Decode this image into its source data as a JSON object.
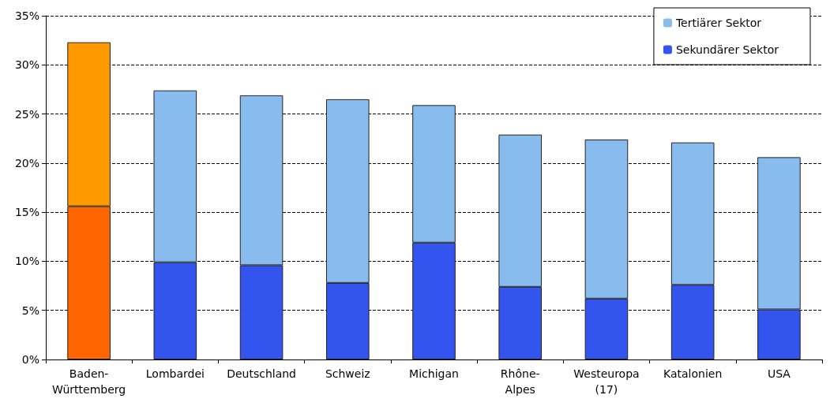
{
  "chart_data": {
    "type": "bar",
    "stacked": true,
    "categories": [
      "Baden-Württemberg",
      "Lombardei",
      "Deutschland",
      "Schweiz",
      "Michigan",
      "Rhône-Alpes",
      "Westeuropa (17)",
      "Katalonien",
      "USA"
    ],
    "series": [
      {
        "name": "Sekundärer Sektor",
        "color": "#3355ee",
        "colors": [
          "#ff6600",
          "#3355ee",
          "#3355ee",
          "#3355ee",
          "#3355ee",
          "#3355ee",
          "#3355ee",
          "#3355ee",
          "#3355ee"
        ],
        "values": [
          15.6,
          9.9,
          9.6,
          7.8,
          11.9,
          7.4,
          6.2,
          7.6,
          5.1
        ]
      },
      {
        "name": "Tertiärer Sektor",
        "color": "#88bbee",
        "colors": [
          "#ff9900",
          "#88bbee",
          "#88bbee",
          "#88bbee",
          "#88bbee",
          "#88bbee",
          "#88bbee",
          "#88bbee",
          "#88bbee"
        ],
        "values": [
          16.7,
          17.5,
          17.3,
          18.7,
          14.0,
          15.5,
          16.2,
          14.5,
          15.5
        ]
      }
    ],
    "ylim": [
      0,
      35
    ],
    "yticks": [
      {
        "value": 0,
        "label": "0%"
      },
      {
        "value": 5,
        "label": "5%"
      },
      {
        "value": 10,
        "label": "10%"
      },
      {
        "value": 15,
        "label": "15%"
      },
      {
        "value": 20,
        "label": "20%"
      },
      {
        "value": 25,
        "label": "25%"
      },
      {
        "value": 30,
        "label": "30%"
      },
      {
        "value": 35,
        "label": "35%"
      }
    ],
    "grid": "y",
    "legend": "top right"
  }
}
